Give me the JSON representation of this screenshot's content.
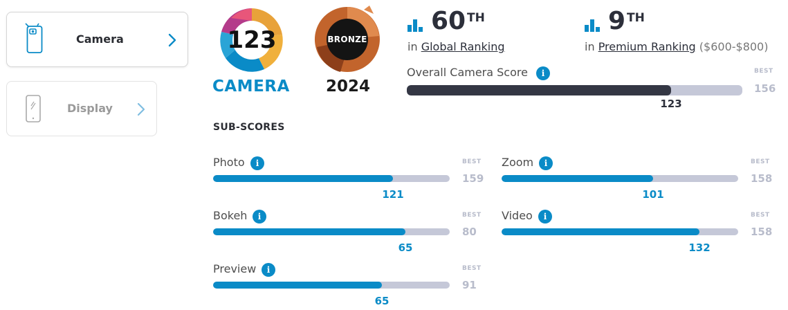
{
  "sidebar": {
    "items": [
      {
        "label": "Camera",
        "active": true
      },
      {
        "label": "Display",
        "active": false
      }
    ]
  },
  "badges": {
    "camera_score": "123",
    "camera_label": "CAMERA",
    "medal_label": "BRONZE",
    "medal_year": "2024"
  },
  "rankings": {
    "global": {
      "rank": "60",
      "suffix": "TH",
      "prefix": "in",
      "link": "Global Ranking"
    },
    "premium": {
      "rank": "9",
      "suffix": "TH",
      "prefix": "in",
      "link": "Premium Ranking",
      "range": "($600-$800)"
    }
  },
  "overall": {
    "label": "Overall Camera Score",
    "score": 123,
    "best_label": "BEST",
    "best": 156
  },
  "subscores": {
    "title": "SUB-SCORES",
    "best_label": "BEST",
    "items": [
      {
        "label": "Photo",
        "score": 121,
        "best": 159
      },
      {
        "label": "Zoom",
        "score": 101,
        "best": 158
      },
      {
        "label": "Bokeh",
        "score": 65,
        "best": 80
      },
      {
        "label": "Video",
        "score": 132,
        "best": 158
      },
      {
        "label": "Preview",
        "score": 65,
        "best": 91
      }
    ]
  },
  "colors": {
    "accent": "#0a8bc7",
    "overall_fill": "#343744",
    "track": "#c5c8d8",
    "best": "#b8bccb",
    "bronze": "#c2642c"
  },
  "icons": {
    "camera_tab": "phone-camera-icon",
    "display_tab": "phone-display-icon",
    "chevron": "chevron-right-icon",
    "ranking": "bar-chart-icon",
    "info": "info-icon"
  }
}
